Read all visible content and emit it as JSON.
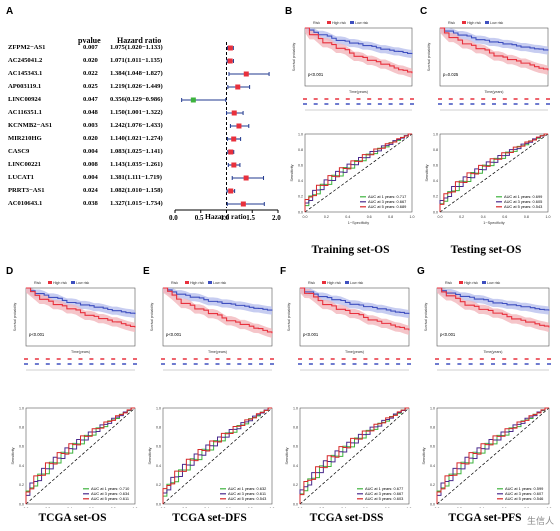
{
  "panel_letters": [
    "A",
    "B",
    "C",
    "D",
    "E",
    "F",
    "G"
  ],
  "forest": {
    "header_pvalue": "pvalue",
    "header_hr": "Hazard ratio",
    "axis_label": "Hazard ratio",
    "ticks": [
      "0.0",
      "0.5",
      "1.0",
      "1.5",
      "2.0"
    ],
    "rows": [
      {
        "gene": "ZFPM2−AS1",
        "p": "0.007",
        "hr": "1.075(1.020−1.133)",
        "est": 1.075,
        "lo": 1.02,
        "hi": 1.133
      },
      {
        "gene": "AC245041.2",
        "p": "0.020",
        "hr": "1.071(1.011−1.135)",
        "est": 1.071,
        "lo": 1.011,
        "hi": 1.135
      },
      {
        "gene": "AC145343.1",
        "p": "0.022",
        "hr": "1.384(1.048−1.827)",
        "est": 1.384,
        "lo": 1.048,
        "hi": 1.827
      },
      {
        "gene": "AP003119.1",
        "p": "0.025",
        "hr": "1.219(1.026−1.449)",
        "est": 1.219,
        "lo": 1.026,
        "hi": 1.449
      },
      {
        "gene": "LINC00924",
        "p": "0.047",
        "hr": "0.356(0.129−0.986)",
        "est": 0.356,
        "lo": 0.129,
        "hi": 0.986
      },
      {
        "gene": "AC116351.1",
        "p": "0.048",
        "hr": "1.150(1.001−1.322)",
        "est": 1.15,
        "lo": 1.001,
        "hi": 1.322
      },
      {
        "gene": "KCNMB2−AS1",
        "p": "0.003",
        "hr": "1.242(1.076−1.433)",
        "est": 1.242,
        "lo": 1.076,
        "hi": 1.433
      },
      {
        "gene": "MIR210HG",
        "p": "0.020",
        "hr": "1.140(1.021−1.274)",
        "est": 1.14,
        "lo": 1.021,
        "hi": 1.274
      },
      {
        "gene": "CASC9",
        "p": "0.004",
        "hr": "1.083(1.025−1.141)",
        "est": 1.083,
        "lo": 1.025,
        "hi": 1.141
      },
      {
        "gene": "LINC00221",
        "p": "0.008",
        "hr": "1.143(1.035−1.261)",
        "est": 1.143,
        "lo": 1.035,
        "hi": 1.261
      },
      {
        "gene": "LUCAT1",
        "p": "0.004",
        "hr": "1.381(1.111−1.719)",
        "est": 1.381,
        "lo": 1.111,
        "hi": 1.719
      },
      {
        "gene": "PRRT3−AS1",
        "p": "0.024",
        "hr": "1.082(1.010−1.158)",
        "est": 1.082,
        "lo": 1.01,
        "hi": 1.158
      },
      {
        "gene": "AC010643.1",
        "p": "0.038",
        "hr": "1.327(1.015−1.734)",
        "est": 1.327,
        "lo": 1.015,
        "hi": 1.734
      }
    ]
  },
  "km_common": {
    "legend_risk": "Risk",
    "legend_high": "High risk",
    "legend_low": "Low risk",
    "ylabel": "Survival probability",
    "xlabel": "Time(years)",
    "roc_ylabel": "Sensitivity",
    "roc_xlabel": "1−Specificity"
  },
  "panels": [
    {
      "letter": "B",
      "caption": "Training set-OS",
      "p": "p<0.001",
      "auc": [
        "AUC at 1 years: 0.717",
        "AUC at 3 years: 0.667",
        "AUC at 5 years: 0.689"
      ]
    },
    {
      "letter": "C",
      "caption": "Testing set-OS",
      "p": "p=0.025",
      "auc": [
        "AUC at 1 years: 0.699",
        "AUC at 3 years: 0.605",
        "AUC at 5 years: 0.543"
      ]
    },
    {
      "letter": "D",
      "caption": "TCGA set-OS",
      "p": "p<0.001",
      "auc": [
        "AUC at 1 years: 0.710",
        "AUC at 3 years: 0.634",
        "AUC at 5 years: 0.611"
      ]
    },
    {
      "letter": "E",
      "caption": "TCGA set-DFS",
      "p": "p<0.001",
      "auc": [
        "AUC at 1 years: 0.632",
        "AUC at 3 years: 0.611",
        "AUC at 5 years: 0.543"
      ]
    },
    {
      "letter": "F",
      "caption": "TCGA set-DSS",
      "p": "p<0.001",
      "auc": [
        "AUC at 1 years: 0.677",
        "AUC at 3 years: 0.667",
        "AUC at 5 years: 0.603"
      ]
    },
    {
      "letter": "G",
      "caption": "TCGA set-PFS",
      "p": "p<0.001",
      "auc": [
        "AUC at 1 years: 0.599",
        "AUC at 3 years: 0.607",
        "AUC at 5 years: 0.546"
      ]
    }
  ],
  "colors": {
    "high": "#e8303c",
    "low": "#3e4fbf",
    "green": "#3db33d",
    "purple": "#4a2a8c",
    "red": "#d62728",
    "ci_high": "#f3b6bb",
    "ci_low": "#b9c1ee"
  },
  "watermark": "生信人"
}
